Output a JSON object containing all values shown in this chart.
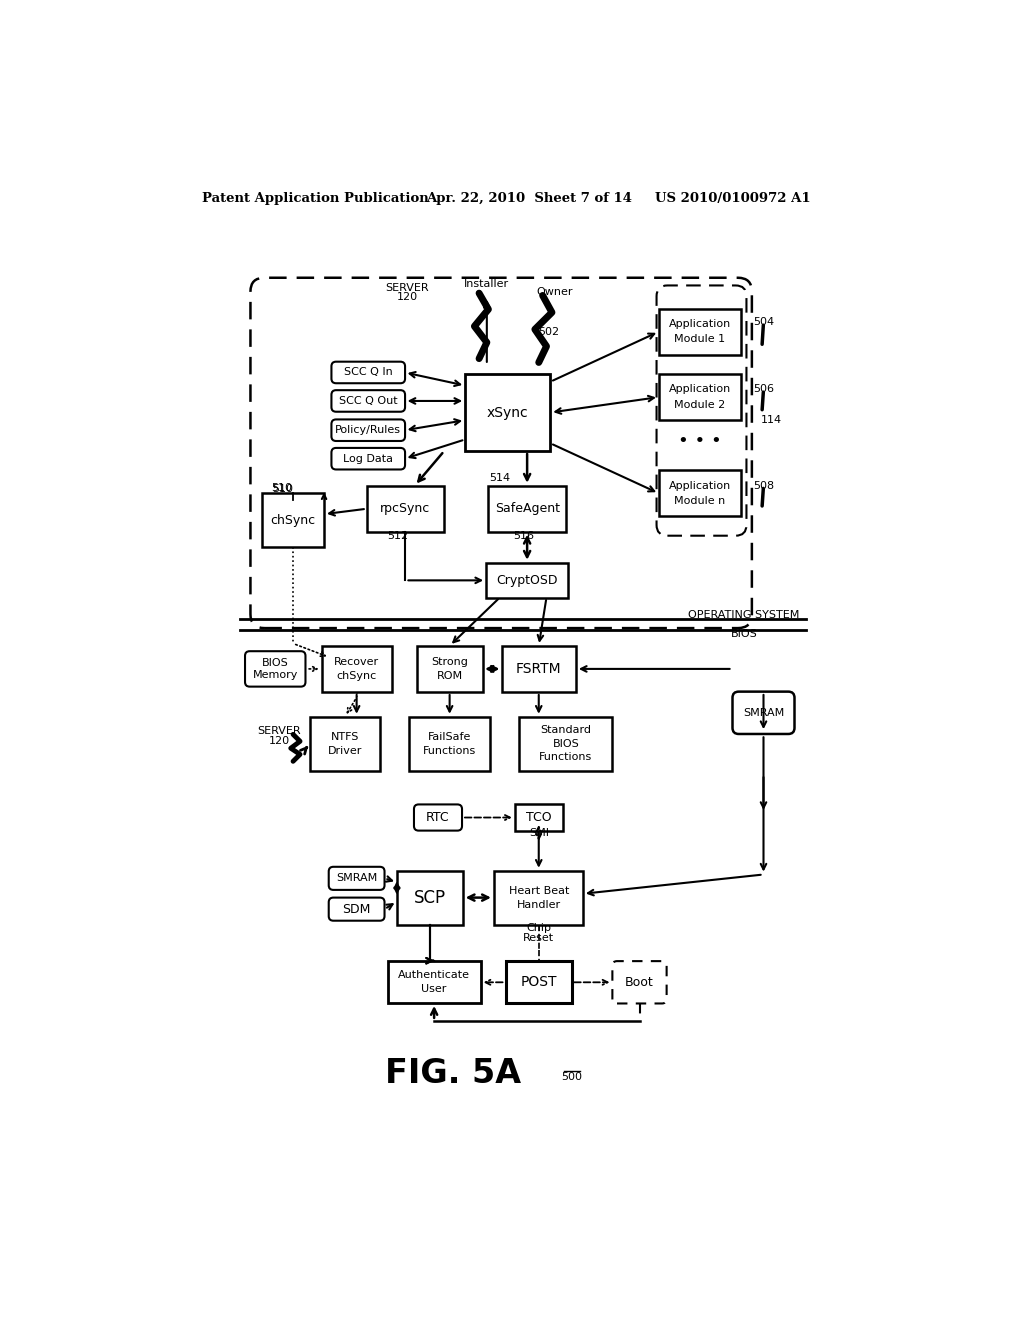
{
  "bg_color": "#ffffff",
  "header_text_left": "Patent Application Publication",
  "header_text_mid": "Apr. 22, 2010  Sheet 7 of 14",
  "header_text_right": "US 2010/0100972 A1",
  "fig_label": "FIG. 5A",
  "fig_number": "500"
}
